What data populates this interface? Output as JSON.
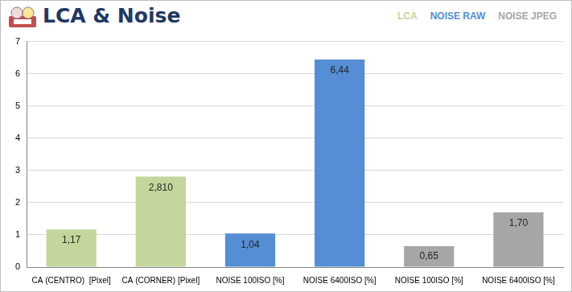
{
  "chart_data": {
    "type": "bar",
    "title": "LCA & Noise",
    "categories": [
      "CA (CENTRO)  [Pixel]",
      "CA (CORNER) [Pixel]",
      "NOISE 100ISO [%]",
      "NOISE 6400ISO [%]",
      "NOISE 100ISO [%]",
      "NOISE 6400ISO [%]"
    ],
    "series": [
      {
        "name": "LCA",
        "color": "#c3d69b",
        "values": [
          1.17,
          2.81,
          null,
          null,
          null,
          null
        ],
        "value_labels": [
          "1,17",
          "2,810",
          null,
          null,
          null,
          null
        ]
      },
      {
        "name": "NOISE RAW",
        "color": "#558ed5",
        "values": [
          null,
          null,
          1.04,
          6.44,
          null,
          null
        ],
        "value_labels": [
          null,
          null,
          "1,04",
          "6,44",
          null,
          null
        ]
      },
      {
        "name": "NOISE JPEG",
        "color": "#a6a6a6",
        "values": [
          null,
          null,
          null,
          null,
          0.65,
          1.7
        ],
        "value_labels": [
          null,
          null,
          null,
          null,
          "0,65",
          "1,70"
        ]
      }
    ],
    "ylim": [
      0,
      7
    ],
    "yticks": [
      0,
      1,
      2,
      3,
      4,
      5,
      6,
      7
    ],
    "grid": true,
    "legend": "top-right",
    "data_labels": true
  }
}
